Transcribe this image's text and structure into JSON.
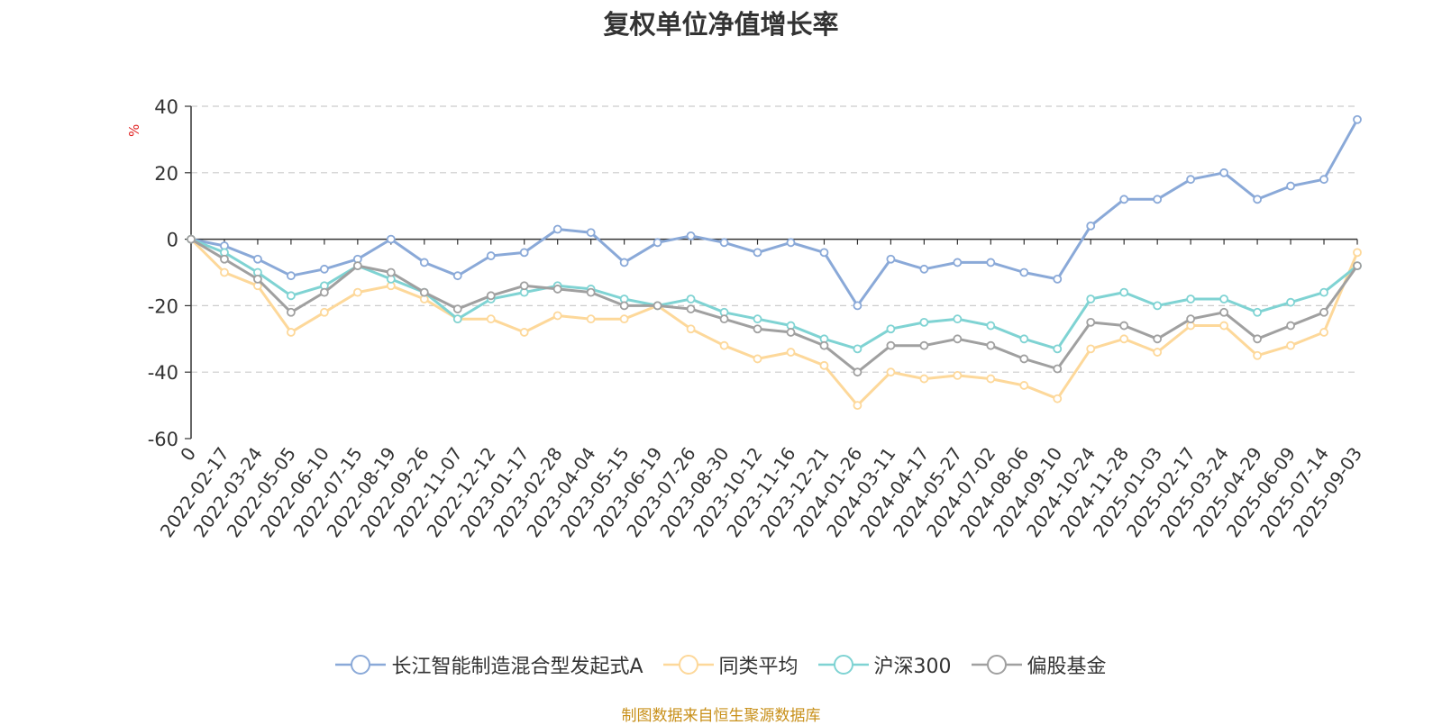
{
  "chart_data": {
    "type": "line",
    "title": "复权单位净值增长率",
    "ylabel": "%",
    "ylim": [
      -60,
      40
    ],
    "yticks": [
      40,
      20,
      0,
      -20,
      -40,
      -60
    ],
    "grid": true,
    "legend_position": "bottom-center",
    "x_tick_labels": [
      "0",
      "2022-02-17",
      "2022-03-24",
      "2022-05-05",
      "2022-06-10",
      "2022-07-15",
      "2022-08-19",
      "2022-09-26",
      "2022-11-07",
      "2022-12-12",
      "2023-01-17",
      "2023-02-28",
      "2023-04-04",
      "2023-05-15",
      "2023-06-19",
      "2023-07-26",
      "2023-08-30",
      "2023-10-12",
      "2023-11-16",
      "2023-12-21",
      "2024-01-26",
      "2024-03-11",
      "2024-04-17",
      "2024-05-27",
      "2024-07-02",
      "2024-08-06",
      "2024-09-10",
      "2024-10-24",
      "2024-11-28",
      "2025-01-03",
      "2025-02-17",
      "2025-03-24",
      "2025-04-29",
      "2025-06-09",
      "2025-07-14",
      "2025-09-03"
    ],
    "x": [
      "0",
      "2022-02-17",
      "2022-03-24",
      "2022-05-05",
      "2022-06-10",
      "2022-07-15",
      "2022-08-19",
      "2022-09-26",
      "2022-11-07",
      "2022-12-12",
      "2023-01-17",
      "2023-02-28",
      "2023-04-04",
      "2023-05-15",
      "2023-06-19",
      "2023-07-26",
      "2023-08-30",
      "2023-10-12",
      "2023-11-16",
      "2023-12-21",
      "2024-01-26",
      "2024-03-11",
      "2024-04-17",
      "2024-05-27",
      "2024-07-02",
      "2024-08-06",
      "2024-09-10",
      "2024-10-24",
      "2024-11-28",
      "2025-01-03",
      "2025-02-17",
      "2025-03-24",
      "2025-04-29",
      "2025-06-09",
      "2025-07-14",
      "2025-09-03"
    ],
    "series": [
      {
        "name": "长江智能制造混合型发起式A",
        "color": "#8aa9d8",
        "values": [
          0,
          -2,
          -6,
          -11,
          -9,
          -6,
          0,
          -7,
          -11,
          -5,
          -4,
          3,
          2,
          -7,
          -1,
          1,
          -1,
          -4,
          -1,
          -4,
          -20,
          -6,
          -9,
          -7,
          -7,
          -10,
          -12,
          4,
          12,
          12,
          18,
          20,
          12,
          16,
          18,
          36
        ]
      },
      {
        "name": "同类平均",
        "color": "#fdd89a",
        "values": [
          0,
          -10,
          -14,
          -28,
          -22,
          -16,
          -14,
          -18,
          -24,
          -24,
          -28,
          -23,
          -24,
          -24,
          -20,
          -27,
          -32,
          -36,
          -34,
          -38,
          -50,
          -40,
          -42,
          -41,
          -42,
          -44,
          -48,
          -33,
          -30,
          -34,
          -26,
          -26,
          -35,
          -32,
          -28,
          -4
        ]
      },
      {
        "name": "沪深300",
        "color": "#7fd3d3",
        "values": [
          0,
          -4,
          -10,
          -17,
          -14,
          -8,
          -12,
          -16,
          -24,
          -18,
          -16,
          -14,
          -15,
          -18,
          -20,
          -18,
          -22,
          -24,
          -26,
          -30,
          -33,
          -27,
          -25,
          -24,
          -26,
          -30,
          -33,
          -18,
          -16,
          -20,
          -18,
          -18,
          -22,
          -19,
          -16,
          -8
        ]
      },
      {
        "name": "偏股基金",
        "color": "#a0a0a0",
        "values": [
          0,
          -6,
          -12,
          -22,
          -16,
          -8,
          -10,
          -16,
          -21,
          -17,
          -14,
          -15,
          -16,
          -20,
          -20,
          -21,
          -24,
          -27,
          -28,
          -32,
          -40,
          -32,
          -32,
          -30,
          -32,
          -36,
          -39,
          -25,
          -26,
          -30,
          -24,
          -22,
          -30,
          -26,
          -22,
          -8
        ]
      }
    ]
  },
  "source_note": "制图数据来自恒生聚源数据库"
}
